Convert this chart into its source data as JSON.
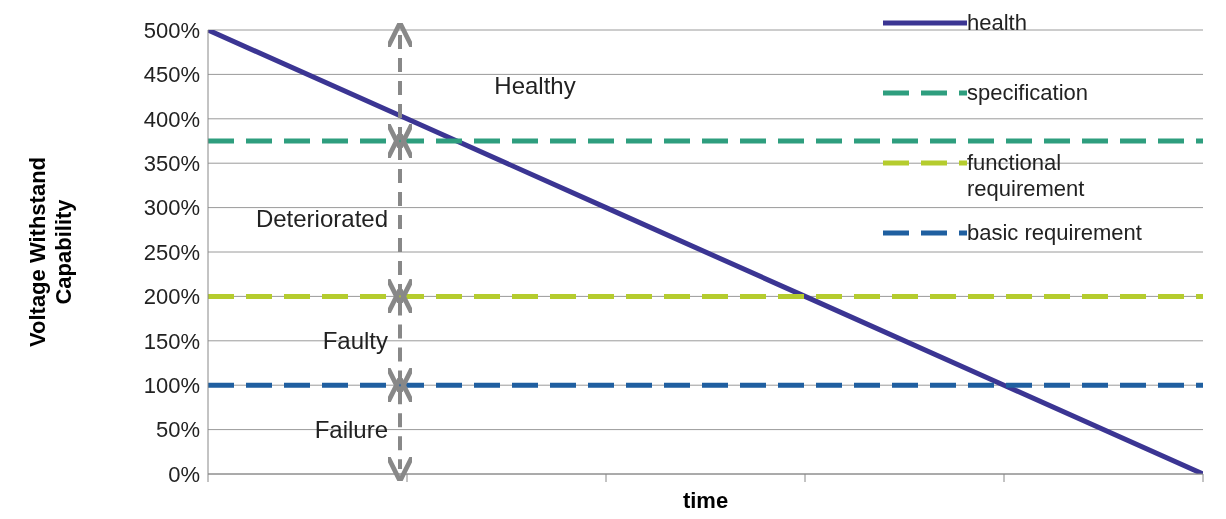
{
  "chart_data": {
    "type": "line",
    "xlabel": "time",
    "ylabel": "Voltage Withstand Capability",
    "categories": [
      null,
      null,
      null,
      null,
      null,
      null
    ],
    "series": [
      {
        "name": "health",
        "color": "#3b3593",
        "values": [
          500,
          400,
          300,
          200,
          100,
          0
        ],
        "line_style": "solid"
      },
      {
        "name": "specification",
        "color": "#2e9e7e",
        "values": [
          375,
          375,
          375,
          375,
          375,
          375
        ],
        "line_style": "dashed"
      },
      {
        "name": "functional requirement",
        "color": "#b5cc2e",
        "values": [
          200,
          200,
          200,
          200,
          200,
          200
        ],
        "line_style": "dashed"
      },
      {
        "name": "basic requirement",
        "color": "#1f5fa0",
        "values": [
          100,
          100,
          100,
          100,
          100,
          100
        ],
        "line_style": "dashed"
      }
    ],
    "ylim": [
      0,
      500
    ],
    "yticks": [
      {
        "value": 0,
        "label": "0%"
      },
      {
        "value": 50,
        "label": "50%"
      },
      {
        "value": 100,
        "label": "100%"
      },
      {
        "value": 150,
        "label": "150%"
      },
      {
        "value": 200,
        "label": "200%"
      },
      {
        "value": 250,
        "label": "250%"
      },
      {
        "value": 300,
        "label": "300%"
      },
      {
        "value": 350,
        "label": "350%"
      },
      {
        "value": 400,
        "label": "400%"
      },
      {
        "value": 450,
        "label": "450%"
      },
      {
        "value": 500,
        "label": "500%"
      }
    ],
    "annotations": [
      "Healthy",
      "Deteriorated",
      "Faulty",
      "Failure"
    ],
    "grid": "y",
    "legend": "top right",
    "marker": "none",
    "tick_labels": "y"
  }
}
